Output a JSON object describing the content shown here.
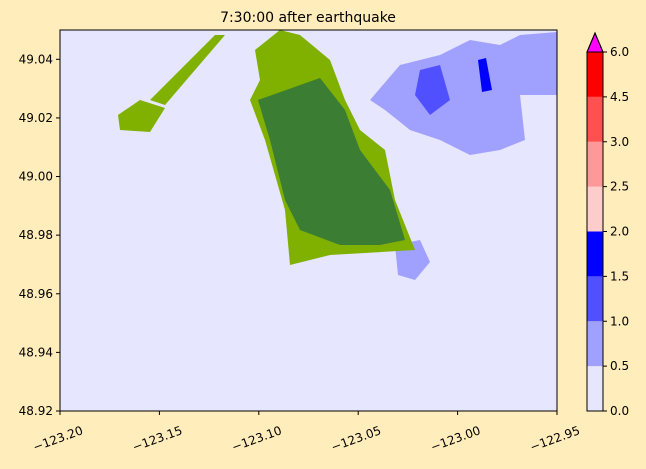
{
  "chart_data": {
    "type": "map",
    "title": "7:30:00 after earthquake",
    "xlim": [
      -123.2,
      -122.95
    ],
    "xticks": [
      {
        "value": -123.2,
        "label": "−123.20"
      },
      {
        "value": -123.15,
        "label": "−123.15"
      },
      {
        "value": -123.1,
        "label": "−123.10"
      },
      {
        "value": -123.05,
        "label": "−123.05"
      },
      {
        "value": -123.0,
        "label": "−123.00"
      },
      {
        "value": -122.95,
        "label": "−122.95"
      }
    ],
    "ylim": [
      48.92,
      49.05
    ],
    "yticks": [
      48.92,
      48.94,
      48.96,
      48.98,
      {
        "value": 49.0,
        "label": "49.00"
      },
      49.02,
      49.04
    ],
    "colorbar": {
      "ticks": [
        {
          "value": 0,
          "label": "0.0"
        },
        0.5,
        {
          "value": 1,
          "label": "1.0"
        },
        1.5,
        {
          "value": 2,
          "label": "2.0"
        },
        2.5,
        {
          "value": 3,
          "label": "3.0"
        },
        4.5,
        {
          "value": 6,
          "label": "6.0"
        }
      ],
      "colors": [
        "#e6e6ff",
        "#a0a0ff",
        "#5050ff",
        "#0000ff",
        "#ffcccc",
        "#ff9999",
        "#ff5050",
        "#ff0000"
      ],
      "over_color": "#ff00ff"
    }
  }
}
